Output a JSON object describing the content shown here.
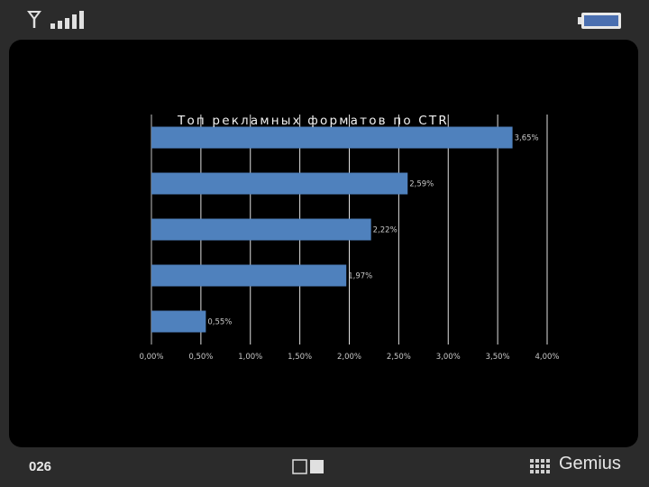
{
  "status_bar": {
    "signal_icon": "signal-strength-icon",
    "battery_icon": "battery-icon"
  },
  "footer": {
    "page_number": "026",
    "nav_icon": "view-toggle-icon",
    "logo_text": "Gemius"
  },
  "chart_data": {
    "type": "bar",
    "orientation": "horizontal",
    "title": "Топ рекламных форматов по CTR",
    "categories": [
      "",
      "",
      "",
      "",
      ""
    ],
    "values": [
      3.65,
      2.59,
      2.22,
      1.97,
      0.55
    ],
    "data_labels": [
      "3,65%",
      "2,59%",
      "2,22%",
      "1,97%",
      "0,55%"
    ],
    "x_ticks": [
      "0,00%",
      "0,50%",
      "1,00%",
      "1,50%",
      "2,00%",
      "2,50%",
      "3,00%",
      "3,50%",
      "4,00%"
    ],
    "xlim": [
      0,
      4
    ],
    "grid": true,
    "bar_color": "#4f81bd",
    "grid_color": "#e0e0e0",
    "label_color": "#c8c8c8"
  }
}
